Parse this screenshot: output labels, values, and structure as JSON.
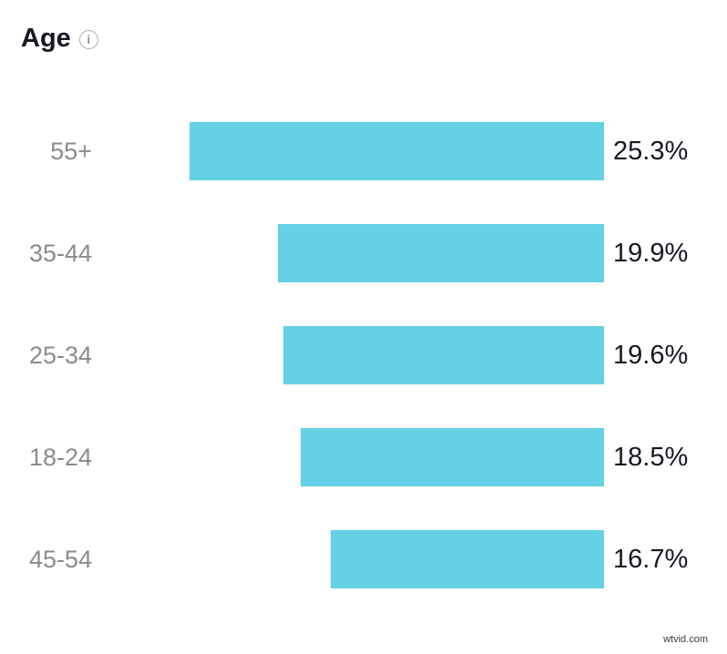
{
  "header": {
    "title": "Age",
    "info_icon_glyph": "i"
  },
  "watermark": "wtvid.com",
  "chart_data": {
    "type": "bar",
    "orientation": "horizontal",
    "title": "Age",
    "categories": [
      "55+",
      "35-44",
      "25-34",
      "18-24",
      "45-54"
    ],
    "values": [
      25.3,
      19.9,
      19.6,
      18.5,
      16.7
    ],
    "value_labels": [
      "25.3%",
      "19.9%",
      "19.6%",
      "18.5%",
      "16.7%"
    ],
    "xlabel": "",
    "ylabel": "",
    "xlim": [
      0,
      25.3
    ],
    "bars_right_aligned": true,
    "grid": false,
    "legend": false,
    "bar_color": "#66d1e4",
    "category_label_color": "#8a8b91",
    "value_label_color": "#161823",
    "title_color": "#161823"
  }
}
